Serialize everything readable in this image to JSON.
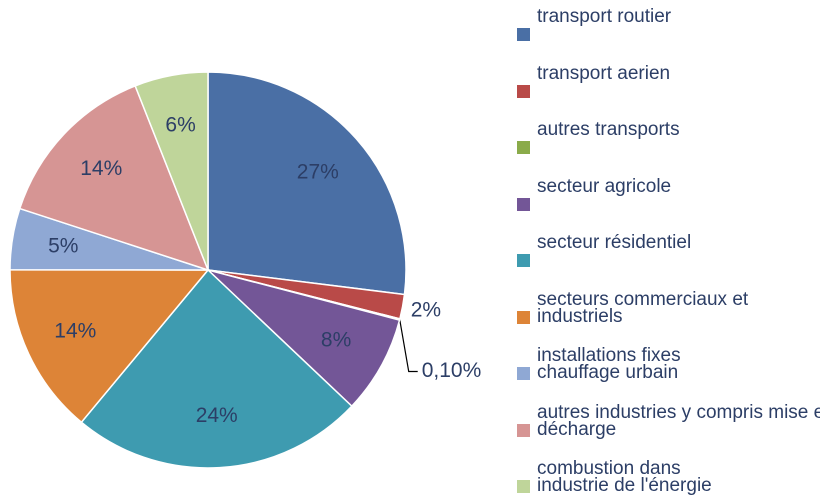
{
  "chart_data": {
    "type": "pie",
    "categories": [
      "transport routier",
      "transport aerien",
      "autres transports",
      "secteur agricole",
      "secteur résidentiel",
      "secteurs commerciaux et industriels",
      "installations fixes chauffage urbain",
      "autres industries y compris mise en décharge",
      "combustion dans industrie de l'énergie"
    ],
    "values": [
      27,
      2,
      0.1,
      8,
      24,
      14,
      5,
      14,
      6
    ],
    "value_labels": [
      "27%",
      "2%",
      "0,10%",
      "8%",
      "24%",
      "14%",
      "5%",
      "14%",
      "6%"
    ],
    "colors": [
      "#4a6fa5",
      "#b94a48",
      "#8aab4a",
      "#735697",
      "#3e9bb0",
      "#dd8437",
      "#8fa8d4",
      "#d69594",
      "#bfd59a"
    ],
    "legend": "right"
  }
}
